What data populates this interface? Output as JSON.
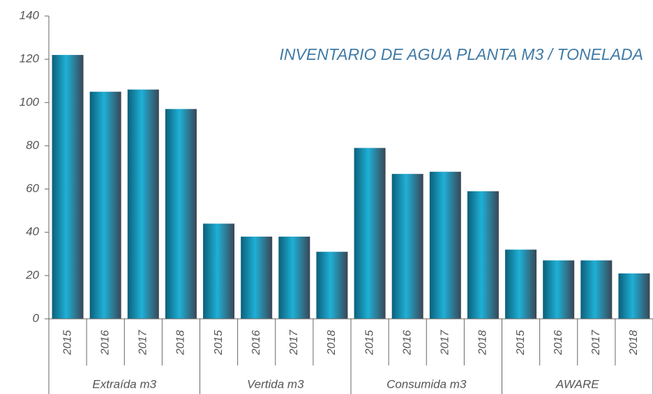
{
  "chart_data": {
    "type": "bar",
    "title": "INVENTARIO DE AGUA PLANTA M3 / TONELADA",
    "color": "#1fb0d6",
    "groups": [
      {
        "name": "Extraída m3",
        "categories": [
          "2015",
          "2016",
          "2017",
          "2018"
        ],
        "values": [
          122,
          105,
          106,
          97
        ]
      },
      {
        "name": "Vertida m3",
        "categories": [
          "2015",
          "2016",
          "2017",
          "2018"
        ],
        "values": [
          44,
          38,
          38,
          31
        ]
      },
      {
        "name": "Consumida m3",
        "categories": [
          "2015",
          "2016",
          "2017",
          "2018"
        ],
        "values": [
          79,
          67,
          68,
          59
        ]
      },
      {
        "name": "AWARE",
        "categories": [
          "2015",
          "2016",
          "2017",
          "2018"
        ],
        "values": [
          32,
          27,
          27,
          21
        ]
      }
    ],
    "ylim": [
      0,
      140
    ],
    "yticks": [
      0,
      20,
      40,
      60,
      80,
      100,
      120,
      140
    ],
    "grid": false
  }
}
